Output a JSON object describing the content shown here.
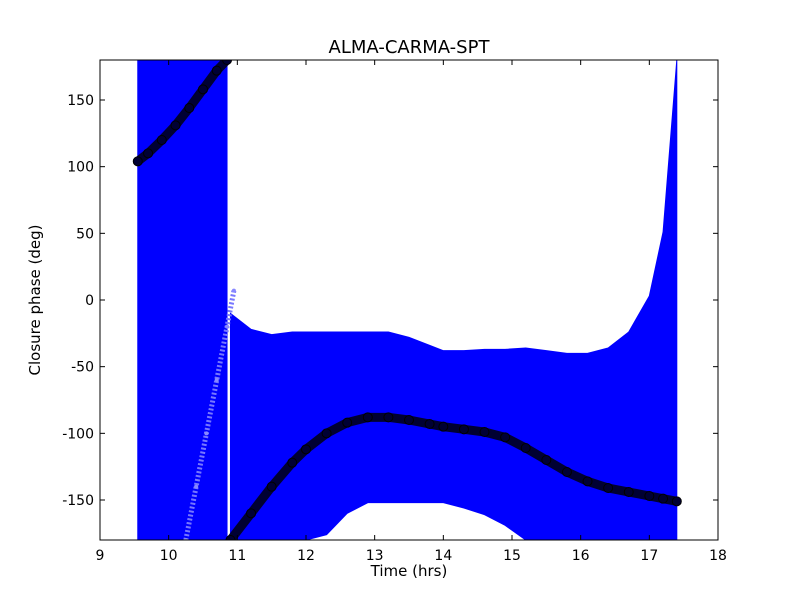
{
  "chart_data": {
    "type": "scatter",
    "title": "ALMA-CARMA-SPT",
    "xlabel": "Time (hrs)",
    "ylabel": "Closure phase (deg)",
    "xlim": [
      9,
      18
    ],
    "ylim": [
      -180,
      180
    ],
    "xticks": [
      9,
      10,
      11,
      12,
      13,
      14,
      15,
      16,
      17,
      18
    ],
    "yticks": [
      -150,
      -100,
      -50,
      0,
      50,
      100,
      150
    ],
    "grid": false,
    "colors": {
      "points": "#000033",
      "errorbars": "#0000ff",
      "axes": "#000000"
    },
    "series": [
      {
        "segment": "early",
        "x": [
          9.55,
          9.7,
          9.9,
          10.1,
          10.3,
          10.5,
          10.7,
          10.85
        ],
        "y": [
          104,
          110,
          120,
          131,
          144,
          158,
          172,
          180
        ],
        "yerr": [
          500,
          500,
          500,
          500,
          500,
          500,
          500,
          500
        ]
      },
      {
        "segment": "main",
        "x": [
          10.9,
          11.2,
          11.5,
          11.8,
          12.0,
          12.3,
          12.6,
          12.9,
          13.2,
          13.5,
          13.8,
          14.0,
          14.3,
          14.6,
          14.9,
          15.2,
          15.5,
          15.8,
          16.1,
          16.4,
          16.7,
          17.0,
          17.2,
          17.4
        ],
        "y": [
          -180,
          -160,
          -140,
          -122,
          -112,
          -100,
          -92,
          -88,
          -88,
          -90,
          -93,
          -95,
          -97,
          -99,
          -103,
          -111,
          -120,
          -129,
          -136,
          -141,
          -144,
          -147,
          -149,
          -151
        ],
        "yerr": [
          170,
          138,
          114,
          98,
          88,
          76,
          68,
          64,
          64,
          62,
          59,
          57,
          59,
          62,
          66,
          75,
          82,
          89,
          96,
          105,
          120,
          150,
          200,
          400
        ]
      },
      {
        "segment": "light-trace",
        "x": [
          10.25,
          10.4,
          10.55,
          10.7,
          10.85,
          10.95
        ],
        "y": [
          -180,
          -140,
          -100,
          -60,
          -20,
          7
        ]
      }
    ]
  }
}
